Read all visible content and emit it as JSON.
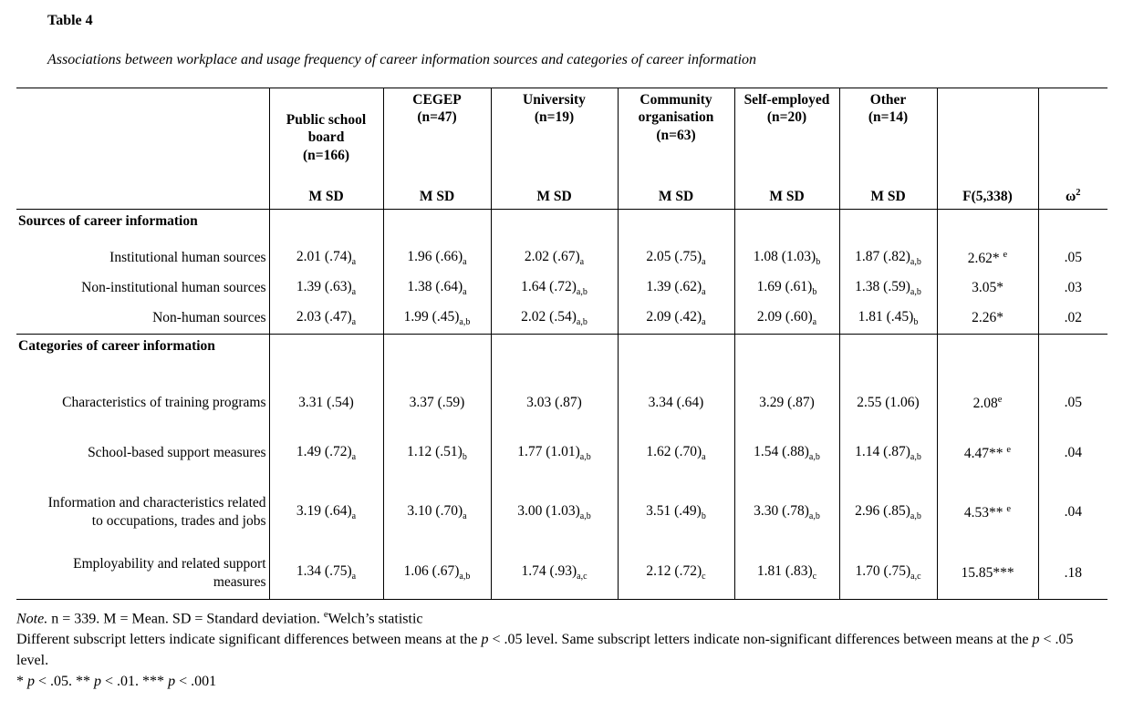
{
  "page": {
    "table_number": "Table 4",
    "table_title": "Associations between workplace and usage frequency of career information sources and categories of career information"
  },
  "table": {
    "groups": [
      {
        "name": "Public school board",
        "n": "(n=166)",
        "msd": "M SD"
      },
      {
        "name": "CEGEP",
        "n": "(n=47)",
        "msd": "M SD"
      },
      {
        "name": "University",
        "n": "(n=19)",
        "msd": "M SD"
      },
      {
        "name": "Community organisation",
        "n": "(n=63)",
        "msd": "M SD"
      },
      {
        "name": "Self-employed",
        "n": "(n=20)",
        "msd": "M SD"
      },
      {
        "name": "Other",
        "n": "(n=14)",
        "msd": "M SD"
      }
    ],
    "f_header": "F(5,338)",
    "omega_header": {
      "base": "ω",
      "sup": "2"
    },
    "rows": [
      {
        "type": "section",
        "label": "Sources of career information"
      },
      {
        "type": "data",
        "label": "Institutional human sources",
        "values": [
          {
            "v": "2.01 (.74)",
            "sub": "a"
          },
          {
            "v": "1.96 (.66)",
            "sub": "a"
          },
          {
            "v": "2.02 (.67)",
            "sub": "a"
          },
          {
            "v": "2.05 (.75)",
            "sub": "a"
          },
          {
            "v": "1.08 (1.03)",
            "sub": "b"
          },
          {
            "v": "1.87 (.82)",
            "sub": "a,b"
          }
        ],
        "f": {
          "v": "2.62* ",
          "sup": "e"
        },
        "omega": ".05"
      },
      {
        "type": "data",
        "label": "Non-institutional human sources",
        "values": [
          {
            "v": "1.39 (.63)",
            "sub": "a"
          },
          {
            "v": "1.38 (.64)",
            "sub": "a"
          },
          {
            "v": "1.64 (.72)",
            "sub": "a,b"
          },
          {
            "v": "1.39 (.62)",
            "sub": "a"
          },
          {
            "v": "1.69 (.61)",
            "sub": "b"
          },
          {
            "v": "1.38 (.59)",
            "sub": "a,b"
          }
        ],
        "f": {
          "v": "3.05*"
        },
        "omega": ".03"
      },
      {
        "type": "data",
        "label": "Non-human sources",
        "values": [
          {
            "v": "2.03 (.47)",
            "sub": "a"
          },
          {
            "v": "1.99 (.45)",
            "sub": "a,b"
          },
          {
            "v": "2.02 (.54)",
            "sub": "a,b"
          },
          {
            "v": "2.09 (.42)",
            "sub": "a"
          },
          {
            "v": "2.09 (.60)",
            "sub": "a"
          },
          {
            "v": "1.81 (.45)",
            "sub": "b"
          }
        ],
        "f": {
          "v": "2.26*"
        },
        "omega": ".02"
      },
      {
        "type": "section",
        "label": "Categories of career information"
      },
      {
        "type": "data",
        "label": "Characteristics of training programs",
        "values": [
          {
            "v": "3.31 (.54)"
          },
          {
            "v": "3.37 (.59)"
          },
          {
            "v": "3.03 (.87)"
          },
          {
            "v": "3.34 (.64)"
          },
          {
            "v": "3.29 (.87)"
          },
          {
            "v": "2.55 (1.06)"
          }
        ],
        "f": {
          "v": "2.08",
          "sup": "e"
        },
        "omega": ".05"
      },
      {
        "type": "data",
        "label": "School-based support measures",
        "values": [
          {
            "v": "1.49 (.72)",
            "sub": "a"
          },
          {
            "v": "1.12 (.51)",
            "sub": "b"
          },
          {
            "v": "1.77 (1.01)",
            "sub": "a,b"
          },
          {
            "v": "1.62 (.70)",
            "sub": "a"
          },
          {
            "v": "1.54 (.88)",
            "sub": "a,b"
          },
          {
            "v": "1.14 (.87)",
            "sub": "a,b"
          }
        ],
        "f": {
          "v": "4.47** ",
          "sup": "e"
        },
        "omega": ".04"
      },
      {
        "type": "data",
        "label": "Information and characteristics related to occupations, trades and jobs",
        "values": [
          {
            "v": "3.19 (.64)",
            "sub": "a"
          },
          {
            "v": "3.10 (.70)",
            "sub": "a"
          },
          {
            "v": "3.00 (1.03)",
            "sub": "a,b"
          },
          {
            "v": "3.51 (.49)",
            "sub": "b"
          },
          {
            "v": "3.30 (.78)",
            "sub": "a,b"
          },
          {
            "v": "2.96 (.85)",
            "sub": "a,b"
          }
        ],
        "f": {
          "v": "4.53** ",
          "sup": "e"
        },
        "omega": ".04"
      },
      {
        "type": "data",
        "label": "Employability and related support measures",
        "values": [
          {
            "v": "1.34 (.75)",
            "sub": "a"
          },
          {
            "v": "1.06 (.67)",
            "sub": "a,b"
          },
          {
            "v": "1.74 (.93)",
            "sub": "a,c"
          },
          {
            "v": "2.12 (.72)",
            "sub": "c"
          },
          {
            "v": "1.81 (.83)",
            "sub": "c"
          },
          {
            "v": "1.70 (.75)",
            "sub": "a,c"
          }
        ],
        "f": {
          "v": "15.85***"
        },
        "omega": ".18"
      }
    ]
  },
  "notes": {
    "lines": [
      [
        {
          "t": "Note.",
          "italic": true
        },
        {
          "t": " n = 339. M = Mean. SD = Standard deviation. "
        },
        {
          "t": "e",
          "sup": true
        },
        {
          "t": "Welch’s statistic"
        }
      ],
      [
        {
          "t": "Different subscript letters indicate significant differences between means at the "
        },
        {
          "t": "p",
          "italic": true
        },
        {
          "t": " < .05 level. Same subscript letters indicate non-significant differences between means at the "
        },
        {
          "t": "p",
          "italic": true
        },
        {
          "t": " < .05 level."
        }
      ],
      [
        {
          "t": "* "
        },
        {
          "t": "p",
          "italic": true
        },
        {
          "t": " < .05. ** "
        },
        {
          "t": "p",
          "italic": true
        },
        {
          "t": " < .01. *** "
        },
        {
          "t": "p",
          "italic": true
        },
        {
          "t": " < .001"
        }
      ]
    ]
  }
}
